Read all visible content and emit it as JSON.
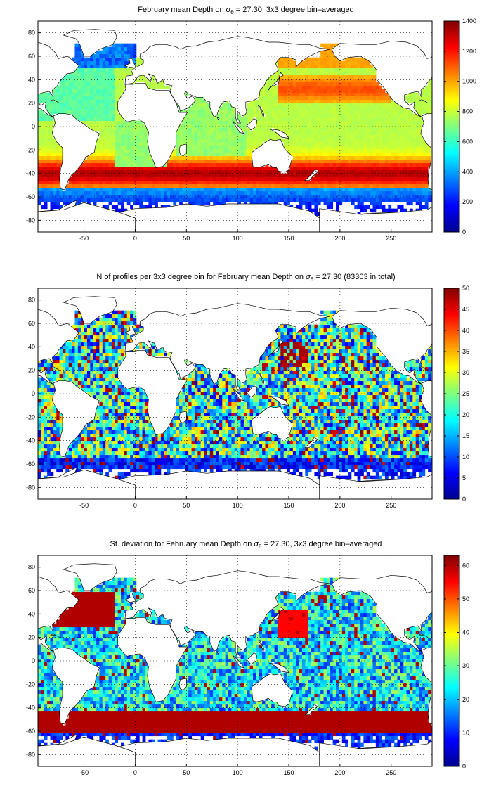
{
  "chart_data": [
    {
      "type": "heatmap",
      "title_parts": [
        "February mean Depth on ",
        "σ",
        "θ",
        " = 27.30, 3x3 degree bin–averaged"
      ],
      "x_ticks": [
        "-50",
        "0",
        "50",
        "100",
        "150",
        "200",
        "250"
      ],
      "y_ticks": [
        "80",
        "60",
        "40",
        "20",
        "0",
        "-20",
        "-40",
        "-60",
        "-80"
      ],
      "xlim": [
        -95,
        290
      ],
      "ylim": [
        -90,
        90
      ],
      "colorbar": {
        "min": 0,
        "max": 1400,
        "ticks": [
          "1400",
          "1200",
          "1000",
          "800",
          "600",
          "400",
          "200",
          "0"
        ]
      },
      "grid": true,
      "field": "depth"
    },
    {
      "type": "heatmap",
      "title_parts": [
        "N of profiles per 3x3 degree bin for February mean Depth on ",
        "σ",
        "θ",
        " = 27.30 (83303 in total)"
      ],
      "x_ticks": [
        "-50",
        "0",
        "50",
        "100",
        "150",
        "200",
        "250"
      ],
      "y_ticks": [
        "80",
        "60",
        "40",
        "20",
        "0",
        "-20",
        "-40",
        "-60",
        "-80"
      ],
      "xlim": [
        -95,
        290
      ],
      "ylim": [
        -90,
        90
      ],
      "colorbar": {
        "min": 0,
        "max": 50,
        "ticks": [
          "50",
          "45",
          "40",
          "35",
          "30",
          "25",
          "20",
          "15",
          "10",
          "5",
          "0"
        ]
      },
      "grid": true,
      "field": "count"
    },
    {
      "type": "heatmap",
      "title_parts": [
        "St. deviation for February mean Depth on ",
        "σ",
        "θ",
        " = 27.30, 3x3 degree bin–averaged"
      ],
      "x_ticks": [
        "-50",
        "0",
        "50",
        "100",
        "150",
        "200",
        "250"
      ],
      "y_ticks": [
        "80",
        "60",
        "40",
        "20",
        "0",
        "-20",
        "-40",
        "-60",
        "-80"
      ],
      "xlim": [
        -95,
        290
      ],
      "ylim": [
        -90,
        90
      ],
      "colorbar": {
        "min": 0,
        "max": 63,
        "ticks": [
          "60",
          "50",
          "40",
          "30",
          "20",
          "10",
          "0"
        ]
      },
      "grid": true,
      "field": "std"
    }
  ]
}
